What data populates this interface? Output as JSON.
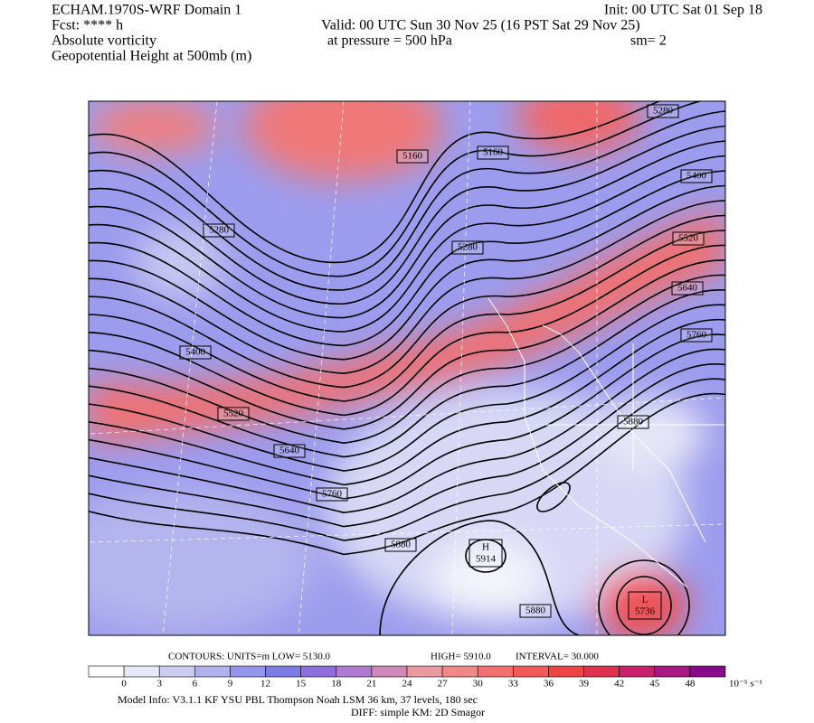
{
  "header": {
    "left": [
      "ECHAM.1970S-WRF Domain 1",
      "Fcst: **** h",
      "Absolute vorticity",
      "Geopotential Height at 500mb (m)"
    ],
    "init": "Init: 00 UTC Sat 01 Sep 18",
    "valid": "Valid: 00 UTC Sun 30 Nov 25 (16 PST Sat 29 Nov 25)",
    "pressure": "at pressure =  500 hPa",
    "smooth": "sm= 2"
  },
  "map": {
    "contour_labels": [
      "5280",
      "5160",
      "5160",
      "5400",
      "5280",
      "5280",
      "5520",
      "5640",
      "5760",
      "5400",
      "5520",
      "5880",
      "5640",
      "5760",
      "5880",
      "5880"
    ],
    "high": {
      "letter": "H",
      "value": "5914"
    },
    "low": {
      "letter": "L",
      "value": "5736"
    }
  },
  "contours_line": [
    "CONTOURS:  UNITS=m  LOW=   5130.0",
    "HIGH=   5910.0",
    "INTERVAL=    30.000"
  ],
  "colorbar": {
    "ticks": [
      0,
      3,
      6,
      9,
      12,
      15,
      18,
      21,
      24,
      27,
      30,
      33,
      36,
      39,
      42,
      45,
      48
    ],
    "unit": "10⁻⁵ s⁻¹"
  },
  "footer": [
    "Model Info: V3.1.1    KF       YSU PBL   Thompson     Noah LSM   36 km,    37 levels,   180 sec",
    "DIFF: simple KM: 2D Smagor"
  ]
}
